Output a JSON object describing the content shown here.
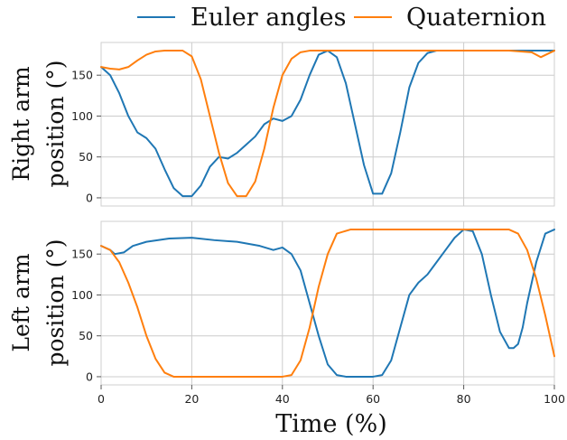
{
  "chart_data": {
    "type": "line",
    "legend": {
      "placement": "top-center",
      "entries": [
        {
          "label": "Euler angles",
          "color": "#1f77b4"
        },
        {
          "label": "Quaternion",
          "color": "#ff7f0e"
        }
      ]
    },
    "xlabel": "Time (%)",
    "xlim": [
      0,
      100
    ],
    "xticks": [
      0,
      20,
      40,
      60,
      80,
      100
    ],
    "grid": true,
    "subplots": [
      {
        "ylabel_line1": "Right arm",
        "ylabel_line2": "position (°)",
        "ylim": [
          -10,
          190
        ],
        "yticks": [
          0,
          50,
          100,
          150
        ],
        "series": [
          {
            "name": "Euler angles",
            "color": "#1f77b4",
            "x": [
              0,
              2,
              4,
              6,
              8,
              10,
              12,
              14,
              16,
              18,
              20,
              22,
              24,
              26,
              28,
              30,
              32,
              34,
              36,
              38,
              40,
              42,
              44,
              46,
              48,
              50,
              52,
              54,
              56,
              58,
              60,
              62,
              64,
              66,
              68,
              70,
              72,
              74,
              76,
              78,
              80,
              85,
              90,
              95,
              100
            ],
            "y": [
              160,
              150,
              128,
              100,
              80,
              73,
              60,
              35,
              12,
              2,
              2,
              15,
              38,
              50,
              48,
              55,
              65,
              75,
              90,
              97,
              94,
              100,
              120,
              150,
              175,
              180,
              172,
              140,
              90,
              40,
              5,
              5,
              30,
              80,
              135,
              165,
              177,
              180,
              180,
              180,
              180,
              180,
              180,
              180,
              180
            ]
          },
          {
            "name": "Quaternion",
            "color": "#ff7f0e",
            "x": [
              0,
              2,
              4,
              6,
              8,
              10,
              12,
              14,
              16,
              18,
              20,
              22,
              24,
              26,
              28,
              30,
              32,
              34,
              36,
              38,
              40,
              42,
              44,
              46,
              48,
              50,
              55,
              60,
              65,
              70,
              75,
              80,
              85,
              90,
              95,
              97,
              100
            ],
            "y": [
              160,
              158,
              157,
              160,
              168,
              175,
              179,
              180,
              180,
              180,
              173,
              145,
              100,
              55,
              18,
              2,
              2,
              20,
              60,
              110,
              150,
              170,
              178,
              180,
              180,
              180,
              180,
              180,
              180,
              180,
              180,
              180,
              180,
              180,
              178,
              172,
              180
            ]
          }
        ]
      },
      {
        "ylabel_line1": "Left arm",
        "ylabel_line2": "position (°)",
        "ylim": [
          -10,
          190
        ],
        "yticks": [
          0,
          50,
          100,
          150
        ],
        "series": [
          {
            "name": "Euler angles",
            "color": "#1f77b4",
            "x": [
              0,
              2,
              3,
              5,
              7,
              10,
              15,
              20,
              25,
              30,
              35,
              38,
              40,
              42,
              44,
              46,
              48,
              50,
              52,
              54,
              56,
              58,
              60,
              62,
              64,
              66,
              68,
              70,
              72,
              74,
              76,
              78,
              80,
              82,
              84,
              86,
              88,
              90,
              91,
              92,
              93,
              94,
              96,
              98,
              100
            ],
            "y": [
              160,
              155,
              150,
              152,
              160,
              165,
              169,
              170,
              167,
              165,
              160,
              155,
              158,
              150,
              130,
              90,
              50,
              15,
              2,
              0,
              0,
              0,
              0,
              2,
              20,
              60,
              100,
              115,
              125,
              140,
              155,
              170,
              180,
              178,
              150,
              100,
              55,
              35,
              35,
              40,
              60,
              90,
              140,
              175,
              180
            ]
          },
          {
            "name": "Quaternion",
            "color": "#ff7f0e",
            "x": [
              0,
              2,
              4,
              6,
              8,
              10,
              12,
              14,
              16,
              20,
              30,
              40,
              42,
              44,
              46,
              48,
              50,
              52,
              55,
              60,
              70,
              80,
              85,
              90,
              92,
              94,
              96,
              98,
              100
            ],
            "y": [
              160,
              155,
              140,
              115,
              85,
              50,
              22,
              5,
              0,
              0,
              0,
              0,
              2,
              20,
              60,
              110,
              150,
              175,
              180,
              180,
              180,
              180,
              180,
              180,
              175,
              155,
              120,
              75,
              25
            ]
          }
        ]
      }
    ]
  }
}
